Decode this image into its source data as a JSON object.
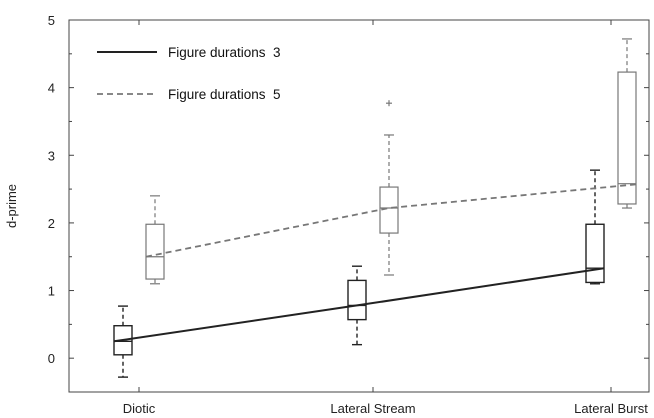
{
  "chart_data": {
    "type": "box",
    "xlabel": "",
    "ylabel": "d-prime",
    "ylim": [
      -0.5,
      5
    ],
    "yticks": [
      0,
      1,
      2,
      3,
      4,
      5
    ],
    "categories": [
      "Diotic",
      "Lateral Stream",
      "Lateral Burst"
    ],
    "legend_position": "top-left",
    "grid": false,
    "series": [
      {
        "name": "Figure durations  3",
        "line_style": "solid",
        "color": "#222222",
        "means": [
          0.25,
          0.78,
          1.33
        ],
        "boxes": [
          {
            "whisker_low": -0.28,
            "q1": 0.05,
            "median": 0.25,
            "q3": 0.48,
            "whisker_high": 0.77,
            "outliers": []
          },
          {
            "whisker_low": 0.2,
            "q1": 0.57,
            "median": 0.78,
            "q3": 1.15,
            "whisker_high": 1.36,
            "outliers": []
          },
          {
            "whisker_low": 1.1,
            "q1": 1.12,
            "median": 1.33,
            "q3": 1.98,
            "whisker_high": 2.78,
            "outliers": []
          }
        ]
      },
      {
        "name": "Figure durations  5",
        "line_style": "dashed",
        "color": "#777777",
        "means": [
          1.5,
          2.22,
          2.57
        ],
        "boxes": [
          {
            "whisker_low": 1.1,
            "q1": 1.17,
            "median": 1.5,
            "q3": 1.98,
            "whisker_high": 2.4,
            "outliers": []
          },
          {
            "whisker_low": 1.23,
            "q1": 1.85,
            "median": 2.22,
            "q3": 2.53,
            "whisker_high": 3.3,
            "outliers": [
              3.77
            ]
          },
          {
            "whisker_low": 2.22,
            "q1": 2.28,
            "median": 2.58,
            "q3": 4.23,
            "whisker_high": 4.72,
            "outliers": []
          }
        ]
      }
    ]
  }
}
